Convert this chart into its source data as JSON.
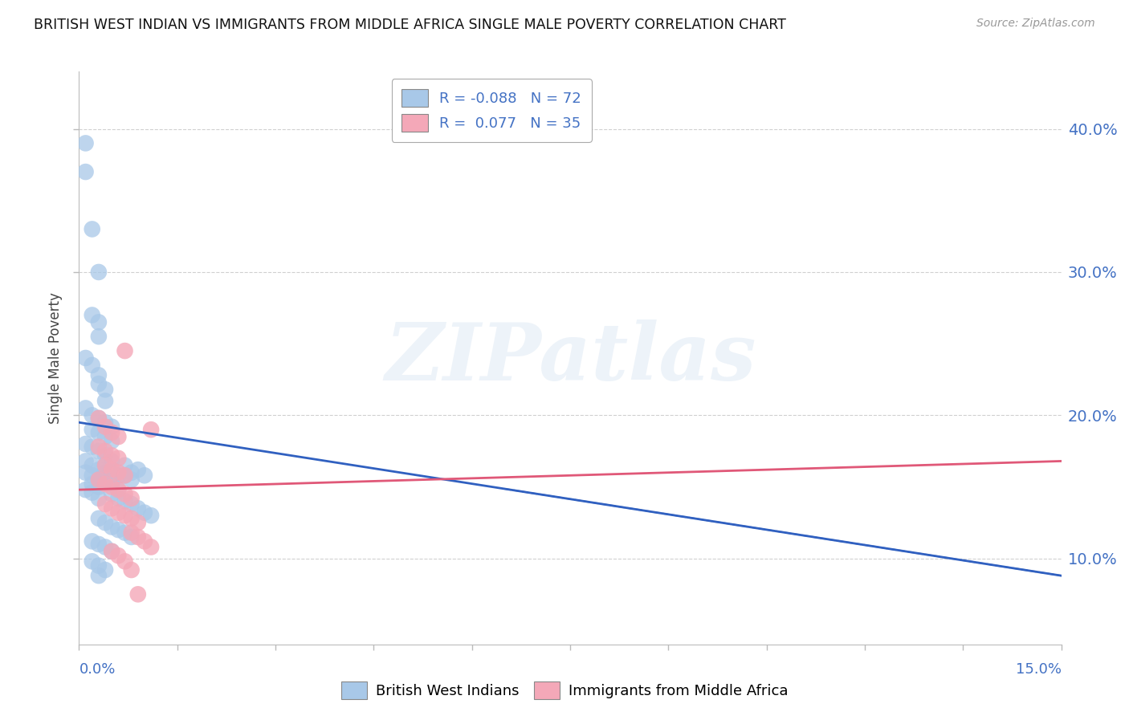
{
  "title": "BRITISH WEST INDIAN VS IMMIGRANTS FROM MIDDLE AFRICA SINGLE MALE POVERTY CORRELATION CHART",
  "source": "Source: ZipAtlas.com",
  "ylabel": "Single Male Poverty",
  "xlim": [
    0.0,
    0.15
  ],
  "ylim": [
    0.04,
    0.44
  ],
  "blue_color": "#a8c8e8",
  "pink_color": "#f4a8b8",
  "blue_line_color": "#3060c0",
  "pink_line_color": "#e05878",
  "right_ytick_vals": [
    0.1,
    0.2,
    0.3,
    0.4
  ],
  "right_ytick_labels": [
    "10.0%",
    "20.0%",
    "30.0%",
    "40.0%"
  ],
  "blue_scatter": [
    [
      0.001,
      0.39
    ],
    [
      0.001,
      0.37
    ],
    [
      0.002,
      0.33
    ],
    [
      0.003,
      0.3
    ],
    [
      0.002,
      0.27
    ],
    [
      0.003,
      0.265
    ],
    [
      0.003,
      0.255
    ],
    [
      0.001,
      0.24
    ],
    [
      0.002,
      0.235
    ],
    [
      0.003,
      0.228
    ],
    [
      0.003,
      0.222
    ],
    [
      0.004,
      0.218
    ],
    [
      0.004,
      0.21
    ],
    [
      0.001,
      0.205
    ],
    [
      0.002,
      0.2
    ],
    [
      0.003,
      0.198
    ],
    [
      0.004,
      0.195
    ],
    [
      0.005,
      0.192
    ],
    [
      0.002,
      0.19
    ],
    [
      0.003,
      0.188
    ],
    [
      0.004,
      0.185
    ],
    [
      0.005,
      0.182
    ],
    [
      0.001,
      0.18
    ],
    [
      0.002,
      0.178
    ],
    [
      0.003,
      0.175
    ],
    [
      0.004,
      0.172
    ],
    [
      0.005,
      0.168
    ],
    [
      0.001,
      0.168
    ],
    [
      0.002,
      0.165
    ],
    [
      0.003,
      0.162
    ],
    [
      0.004,
      0.16
    ],
    [
      0.005,
      0.158
    ],
    [
      0.001,
      0.16
    ],
    [
      0.002,
      0.158
    ],
    [
      0.003,
      0.155
    ],
    [
      0.002,
      0.152
    ],
    [
      0.003,
      0.15
    ],
    [
      0.001,
      0.148
    ],
    [
      0.002,
      0.146
    ],
    [
      0.003,
      0.142
    ],
    [
      0.004,
      0.165
    ],
    [
      0.005,
      0.162
    ],
    [
      0.006,
      0.158
    ],
    [
      0.004,
      0.155
    ],
    [
      0.005,
      0.152
    ],
    [
      0.006,
      0.148
    ],
    [
      0.007,
      0.165
    ],
    [
      0.008,
      0.16
    ],
    [
      0.007,
      0.158
    ],
    [
      0.008,
      0.155
    ],
    [
      0.009,
      0.162
    ],
    [
      0.01,
      0.158
    ],
    [
      0.005,
      0.145
    ],
    [
      0.006,
      0.142
    ],
    [
      0.007,
      0.14
    ],
    [
      0.008,
      0.138
    ],
    [
      0.009,
      0.135
    ],
    [
      0.01,
      0.132
    ],
    [
      0.011,
      0.13
    ],
    [
      0.003,
      0.128
    ],
    [
      0.004,
      0.125
    ],
    [
      0.005,
      0.122
    ],
    [
      0.006,
      0.12
    ],
    [
      0.007,
      0.118
    ],
    [
      0.008,
      0.115
    ],
    [
      0.002,
      0.112
    ],
    [
      0.003,
      0.11
    ],
    [
      0.004,
      0.108
    ],
    [
      0.005,
      0.105
    ],
    [
      0.002,
      0.098
    ],
    [
      0.003,
      0.095
    ],
    [
      0.004,
      0.092
    ],
    [
      0.003,
      0.088
    ]
  ],
  "pink_scatter": [
    [
      0.007,
      0.245
    ],
    [
      0.011,
      0.19
    ],
    [
      0.003,
      0.198
    ],
    [
      0.004,
      0.192
    ],
    [
      0.005,
      0.188
    ],
    [
      0.006,
      0.185
    ],
    [
      0.003,
      0.178
    ],
    [
      0.004,
      0.175
    ],
    [
      0.005,
      0.172
    ],
    [
      0.006,
      0.17
    ],
    [
      0.004,
      0.165
    ],
    [
      0.005,
      0.162
    ],
    [
      0.006,
      0.16
    ],
    [
      0.007,
      0.158
    ],
    [
      0.003,
      0.155
    ],
    [
      0.004,
      0.152
    ],
    [
      0.005,
      0.15
    ],
    [
      0.006,
      0.148
    ],
    [
      0.007,
      0.145
    ],
    [
      0.008,
      0.142
    ],
    [
      0.004,
      0.138
    ],
    [
      0.005,
      0.135
    ],
    [
      0.006,
      0.132
    ],
    [
      0.007,
      0.13
    ],
    [
      0.008,
      0.128
    ],
    [
      0.009,
      0.125
    ],
    [
      0.008,
      0.118
    ],
    [
      0.009,
      0.115
    ],
    [
      0.01,
      0.112
    ],
    [
      0.011,
      0.108
    ],
    [
      0.005,
      0.105
    ],
    [
      0.006,
      0.102
    ],
    [
      0.007,
      0.098
    ],
    [
      0.008,
      0.092
    ],
    [
      0.009,
      0.075
    ]
  ],
  "blue_trend": [
    0.0,
    0.15,
    0.195,
    0.088
  ],
  "pink_trend": [
    0.0,
    0.15,
    0.148,
    0.168
  ],
  "watermark_text": "ZIPatlas",
  "grid_color": "#d0d0d0",
  "background_color": "#ffffff"
}
